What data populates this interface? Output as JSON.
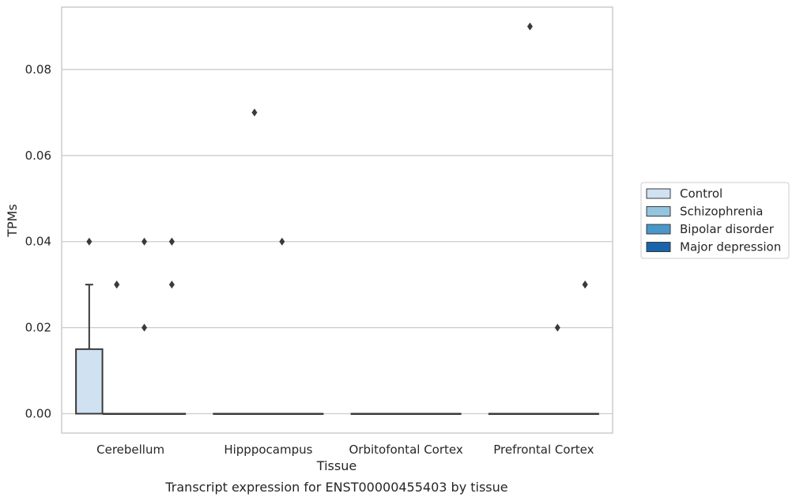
{
  "chart_data": {
    "type": "box",
    "caption": "Transcript expression for ENST00000455403 by tissue",
    "xlabel": "Tissue",
    "ylabel": "TPMs",
    "ylim": [
      -0.0045,
      0.0945
    ],
    "yticks": [
      "0.00",
      "0.02",
      "0.04",
      "0.06",
      "0.08"
    ],
    "grid": true,
    "legend_position": "right",
    "categories": [
      "Cerebellum",
      "Hipppocampus",
      "Orbitofontal Cortex",
      "Prefrontal Cortex"
    ],
    "series": [
      {
        "name": "Control",
        "color": "#d0e1f2",
        "boxes": [
          {
            "q1": 0.0,
            "median": 0.0,
            "q3": 0.015,
            "whisker_low": 0.0,
            "whisker_high": 0.03,
            "outliers": [
              0.04
            ]
          },
          {
            "q1": 0.0,
            "median": 0.0,
            "q3": 0.0,
            "whisker_low": 0.0,
            "whisker_high": 0.0,
            "outliers": []
          },
          {
            "q1": 0.0,
            "median": 0.0,
            "q3": 0.0,
            "whisker_low": 0.0,
            "whisker_high": 0.0,
            "outliers": []
          },
          {
            "q1": 0.0,
            "median": 0.0,
            "q3": 0.0,
            "whisker_low": 0.0,
            "whisker_high": 0.0,
            "outliers": []
          }
        ]
      },
      {
        "name": "Schizophrenia",
        "color": "#94c4df",
        "boxes": [
          {
            "q1": 0.0,
            "median": 0.0,
            "q3": 0.0,
            "whisker_low": 0.0,
            "whisker_high": 0.0,
            "outliers": [
              0.03,
              0.03
            ]
          },
          {
            "q1": 0.0,
            "median": 0.0,
            "q3": 0.0,
            "whisker_low": 0.0,
            "whisker_high": 0.0,
            "outliers": [
              0.07
            ]
          },
          {
            "q1": 0.0,
            "median": 0.0,
            "q3": 0.0,
            "whisker_low": 0.0,
            "whisker_high": 0.0,
            "outliers": []
          },
          {
            "q1": 0.0,
            "median": 0.0,
            "q3": 0.0,
            "whisker_low": 0.0,
            "whisker_high": 0.0,
            "outliers": [
              0.09
            ]
          }
        ]
      },
      {
        "name": "Bipolar disorder",
        "color": "#4a98c9",
        "boxes": [
          {
            "q1": 0.0,
            "median": 0.0,
            "q3": 0.0,
            "whisker_low": 0.0,
            "whisker_high": 0.0,
            "outliers": [
              0.04,
              0.02
            ]
          },
          {
            "q1": 0.0,
            "median": 0.0,
            "q3": 0.0,
            "whisker_low": 0.0,
            "whisker_high": 0.0,
            "outliers": [
              0.04
            ]
          },
          {
            "q1": 0.0,
            "median": 0.0,
            "q3": 0.0,
            "whisker_low": 0.0,
            "whisker_high": 0.0,
            "outliers": []
          },
          {
            "q1": 0.0,
            "median": 0.0,
            "q3": 0.0,
            "whisker_low": 0.0,
            "whisker_high": 0.0,
            "outliers": [
              0.02
            ]
          }
        ]
      },
      {
        "name": "Major depression",
        "color": "#1764ab",
        "boxes": [
          {
            "q1": 0.0,
            "median": 0.0,
            "q3": 0.0,
            "whisker_low": 0.0,
            "whisker_high": 0.0,
            "outliers": [
              0.04,
              0.04,
              0.03
            ]
          },
          {
            "q1": 0.0,
            "median": 0.0,
            "q3": 0.0,
            "whisker_low": 0.0,
            "whisker_high": 0.0,
            "outliers": []
          },
          {
            "q1": 0.0,
            "median": 0.0,
            "q3": 0.0,
            "whisker_low": 0.0,
            "whisker_high": 0.0,
            "outliers": []
          },
          {
            "q1": 0.0,
            "median": 0.0,
            "q3": 0.0,
            "whisker_low": 0.0,
            "whisker_high": 0.0,
            "outliers": [
              0.03,
              0.03
            ]
          }
        ]
      }
    ]
  }
}
